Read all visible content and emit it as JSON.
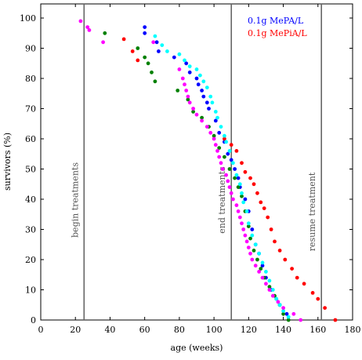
{
  "chart_data": {
    "type": "scatter",
    "xlabel": "age (weeks)",
    "ylabel": "survivors (%)",
    "xlim": [
      0,
      180
    ],
    "ylim": [
      0,
      105
    ],
    "xticks": [
      0,
      20,
      40,
      60,
      80,
      100,
      120,
      140,
      160,
      180
    ],
    "yticks": [
      0,
      10,
      20,
      30,
      40,
      50,
      60,
      70,
      80,
      90,
      100
    ],
    "grid": false,
    "legend_position": "top-right",
    "legend": [
      {
        "label": "0.1g MePA/L",
        "color": "#0000ff"
      },
      {
        "label": "0.1g MePiA/L",
        "color": "#ff0000"
      }
    ],
    "vlines": [
      {
        "x": 25,
        "label": "begin treatments"
      },
      {
        "x": 110,
        "label": "end treatments"
      },
      {
        "x": 162,
        "label": "resume treatment"
      }
    ],
    "series": [
      {
        "name": "0.1g MePA/L",
        "color": "#0000ff",
        "points": [
          [
            60,
            97
          ],
          [
            60,
            95
          ],
          [
            67,
            92
          ],
          [
            68,
            89
          ],
          [
            77,
            87
          ],
          [
            84,
            85
          ],
          [
            86,
            82
          ],
          [
            90,
            80
          ],
          [
            91,
            78
          ],
          [
            93,
            76
          ],
          [
            94,
            74
          ],
          [
            96,
            72
          ],
          [
            97,
            70
          ],
          [
            101,
            66
          ],
          [
            103,
            62
          ],
          [
            106,
            59
          ],
          [
            108,
            55
          ],
          [
            110,
            53
          ],
          [
            112,
            50
          ],
          [
            114,
            47
          ],
          [
            115,
            44
          ],
          [
            118,
            40
          ],
          [
            120,
            36
          ],
          [
            122,
            30
          ],
          [
            124,
            25
          ],
          [
            126,
            22
          ],
          [
            128,
            18
          ],
          [
            130,
            14
          ],
          [
            133,
            10
          ],
          [
            136,
            7
          ],
          [
            138,
            5
          ],
          [
            142,
            2
          ]
        ]
      },
      {
        "name": "0.1g MePiA/L",
        "color": "#ff0000",
        "points": [
          [
            48,
            93
          ],
          [
            53,
            89
          ],
          [
            56,
            86
          ],
          [
            106,
            60
          ],
          [
            110,
            58
          ],
          [
            113,
            56
          ],
          [
            116,
            52
          ],
          [
            118,
            49
          ],
          [
            121,
            47
          ],
          [
            123,
            45
          ],
          [
            125,
            42
          ],
          [
            127,
            39
          ],
          [
            129,
            37
          ],
          [
            131,
            34
          ],
          [
            133,
            30
          ],
          [
            135,
            26
          ],
          [
            138,
            23
          ],
          [
            141,
            20
          ],
          [
            145,
            17
          ],
          [
            148,
            14
          ],
          [
            152,
            12
          ],
          [
            157,
            9
          ],
          [
            160,
            7
          ],
          [
            164,
            4
          ],
          [
            170,
            0
          ]
        ]
      },
      {
        "name": "",
        "color": "#008000",
        "points": [
          [
            37,
            95
          ],
          [
            56,
            90
          ],
          [
            60,
            87
          ],
          [
            62,
            85
          ],
          [
            64,
            82
          ],
          [
            66,
            79
          ],
          [
            79,
            76
          ],
          [
            85,
            73
          ],
          [
            88,
            69
          ],
          [
            93,
            67
          ],
          [
            97,
            64
          ],
          [
            100,
            61
          ],
          [
            103,
            57
          ],
          [
            106,
            54
          ],
          [
            109,
            50
          ],
          [
            112,
            47
          ],
          [
            114,
            44
          ],
          [
            116,
            41
          ],
          [
            118,
            36
          ],
          [
            120,
            31
          ],
          [
            121,
            27
          ],
          [
            123,
            23
          ],
          [
            125,
            20
          ],
          [
            127,
            17
          ],
          [
            129,
            14
          ],
          [
            132,
            11
          ],
          [
            135,
            8
          ],
          [
            138,
            5
          ],
          [
            140,
            2
          ],
          [
            143,
            0
          ]
        ]
      },
      {
        "name": "",
        "color": "#00ffff",
        "points": [
          [
            66,
            94
          ],
          [
            70,
            91
          ],
          [
            73,
            89
          ],
          [
            80,
            88
          ],
          [
            83,
            86
          ],
          [
            86,
            84
          ],
          [
            90,
            83
          ],
          [
            92,
            81
          ],
          [
            94,
            79
          ],
          [
            96,
            77
          ],
          [
            98,
            74
          ],
          [
            99,
            72
          ],
          [
            101,
            69
          ],
          [
            102,
            67
          ],
          [
            104,
            64
          ],
          [
            106,
            61
          ],
          [
            107,
            59
          ],
          [
            109,
            56
          ],
          [
            111,
            52
          ],
          [
            113,
            48
          ],
          [
            115,
            45
          ],
          [
            116,
            42
          ],
          [
            117,
            39
          ],
          [
            119,
            36
          ],
          [
            120,
            32
          ],
          [
            122,
            28
          ],
          [
            124,
            25
          ],
          [
            126,
            22
          ],
          [
            128,
            19
          ],
          [
            130,
            16
          ],
          [
            132,
            13
          ],
          [
            134,
            10
          ],
          [
            136,
            7
          ],
          [
            138,
            5
          ],
          [
            140,
            3
          ],
          [
            143,
            1
          ]
        ]
      },
      {
        "name": "",
        "color": "#ff00ff",
        "points": [
          [
            23,
            99
          ],
          [
            27,
            97
          ],
          [
            28,
            96
          ],
          [
            36,
            92
          ],
          [
            65,
            92
          ],
          [
            80,
            83
          ],
          [
            82,
            80
          ],
          [
            83,
            78
          ],
          [
            84,
            76
          ],
          [
            85,
            74
          ],
          [
            86,
            72
          ],
          [
            88,
            70
          ],
          [
            90,
            68
          ],
          [
            93,
            66
          ],
          [
            96,
            64
          ],
          [
            98,
            62
          ],
          [
            100,
            60
          ],
          [
            101,
            58
          ],
          [
            102,
            56
          ],
          [
            103,
            54
          ],
          [
            104,
            52
          ],
          [
            105,
            50
          ],
          [
            107,
            48
          ],
          [
            108,
            46
          ],
          [
            109,
            44
          ],
          [
            110,
            42
          ],
          [
            111,
            40
          ],
          [
            113,
            38
          ],
          [
            114,
            36
          ],
          [
            115,
            34
          ],
          [
            116,
            32
          ],
          [
            117,
            30
          ],
          [
            118,
            28
          ],
          [
            119,
            26
          ],
          [
            120,
            24
          ],
          [
            121,
            22
          ],
          [
            122,
            20
          ],
          [
            124,
            18
          ],
          [
            126,
            16
          ],
          [
            128,
            14
          ],
          [
            130,
            12
          ],
          [
            132,
            10
          ],
          [
            134,
            8
          ],
          [
            137,
            6
          ],
          [
            140,
            4
          ],
          [
            146,
            2
          ],
          [
            150,
            0
          ]
        ]
      }
    ]
  }
}
